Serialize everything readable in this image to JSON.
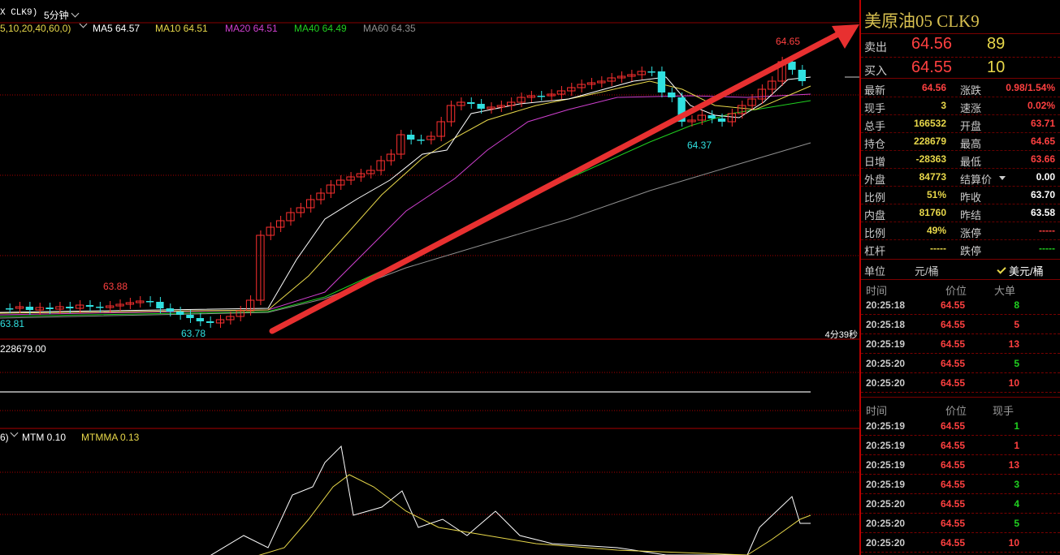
{
  "header": {
    "symbol": "X CLK9)",
    "period": "5分钟"
  },
  "ma_legend": [
    {
      "text": "5,10,20,40,60,0)",
      "color": "#e8d84a"
    },
    {
      "text": "MA5 64.57",
      "color": "#ffffff"
    },
    {
      "text": "MA10 64.51",
      "color": "#e8d84a"
    },
    {
      "text": "MA20 64.51",
      "color": "#d040d0"
    },
    {
      "text": "MA40 64.49",
      "color": "#20d020"
    },
    {
      "text": "MA60 64.35",
      "color": "#909090"
    }
  ],
  "price_labels": {
    "high": "64.65",
    "low_recent": "64.37",
    "left_high": "63.88",
    "left_low": "63.78",
    "left_edge": "63.81"
  },
  "timer": "4分39秒",
  "volume_label": "228679.00",
  "mtm_legend": [
    {
      "text": "6)",
      "color": "#ffffff"
    },
    {
      "text": "MTM 0.10",
      "color": "#ffffff"
    },
    {
      "text": "MTMMA 0.13",
      "color": "#e8d84a"
    }
  ],
  "panel": {
    "title": "美原油05  CLK9",
    "ask": {
      "label": "卖出",
      "price": "64.56",
      "volume": "89"
    },
    "bid": {
      "label": "买入",
      "price": "64.55",
      "volume": "10"
    },
    "stats": [
      {
        "l": "最新",
        "v": "64.56",
        "vc": "red",
        "l2": "涨跌",
        "v2": "0.98/1.54%",
        "v2c": "red"
      },
      {
        "l": "现手",
        "v": "3",
        "vc": "yellow",
        "l2": "速涨",
        "v2": "0.02%",
        "v2c": "red"
      },
      {
        "l": "总手",
        "v": "166532",
        "vc": "yellow",
        "l2": "开盘",
        "v2": "63.71",
        "v2c": "red"
      },
      {
        "l": "持仓",
        "v": "228679",
        "vc": "yellow",
        "l2": "最高",
        "v2": "64.65",
        "v2c": "red"
      },
      {
        "l": "日增",
        "v": "-28363",
        "vc": "yellow",
        "l2": "最低",
        "v2": "63.66",
        "v2c": "red"
      },
      {
        "l": "外盘",
        "v": "84773",
        "vc": "yellow",
        "l2": "结算价",
        "v2": "0.00",
        "v2c": "white"
      },
      {
        "l": "比例",
        "v": "51%",
        "vc": "yellow",
        "l2": "昨收",
        "v2": "63.70",
        "v2c": "white"
      },
      {
        "l": "内盘",
        "v": "81760",
        "vc": "yellow",
        "l2": "昨结",
        "v2": "63.58",
        "v2c": "white"
      },
      {
        "l": "比例",
        "v": "49%",
        "vc": "yellow",
        "l2": "涨停",
        "v2": "-----",
        "v2c": "red"
      },
      {
        "l": "杠杆",
        "v": "-----",
        "vc": "yellow",
        "l2": "跌停",
        "v2": "-----",
        "v2c": "green"
      }
    ],
    "unit": {
      "label": "单位",
      "opt1": "元/桶",
      "opt2": "美元/桶"
    },
    "big_orders": {
      "headers": [
        "时间",
        "价位",
        "大单"
      ],
      "rows": [
        {
          "time": "20:25:18",
          "price": "64.55",
          "qty": "8",
          "qc": "green"
        },
        {
          "time": "20:25:18",
          "price": "64.55",
          "qty": "5",
          "qc": "red"
        },
        {
          "time": "20:25:19",
          "price": "64.55",
          "qty": "13",
          "qc": "red"
        },
        {
          "time": "20:25:20",
          "price": "64.55",
          "qty": "5",
          "qc": "green"
        },
        {
          "time": "20:25:20",
          "price": "64.55",
          "qty": "10",
          "qc": "red"
        }
      ]
    },
    "ticks": {
      "headers": [
        "时间",
        "价位",
        "现手"
      ],
      "rows": [
        {
          "time": "20:25:19",
          "price": "64.55",
          "qty": "1",
          "qc": "green"
        },
        {
          "time": "20:25:19",
          "price": "64.55",
          "qty": "1",
          "qc": "red"
        },
        {
          "time": "20:25:19",
          "price": "64.55",
          "qty": "13",
          "qc": "red"
        },
        {
          "time": "20:25:19",
          "price": "64.55",
          "qty": "3",
          "qc": "green"
        },
        {
          "time": "20:25:20",
          "price": "64.55",
          "qty": "4",
          "qc": "green"
        },
        {
          "time": "20:25:20",
          "price": "64.55",
          "qty": "5",
          "qc": "green"
        },
        {
          "time": "20:25:20",
          "price": "64.55",
          "qty": "10",
          "qc": "red"
        }
      ]
    }
  }
}
